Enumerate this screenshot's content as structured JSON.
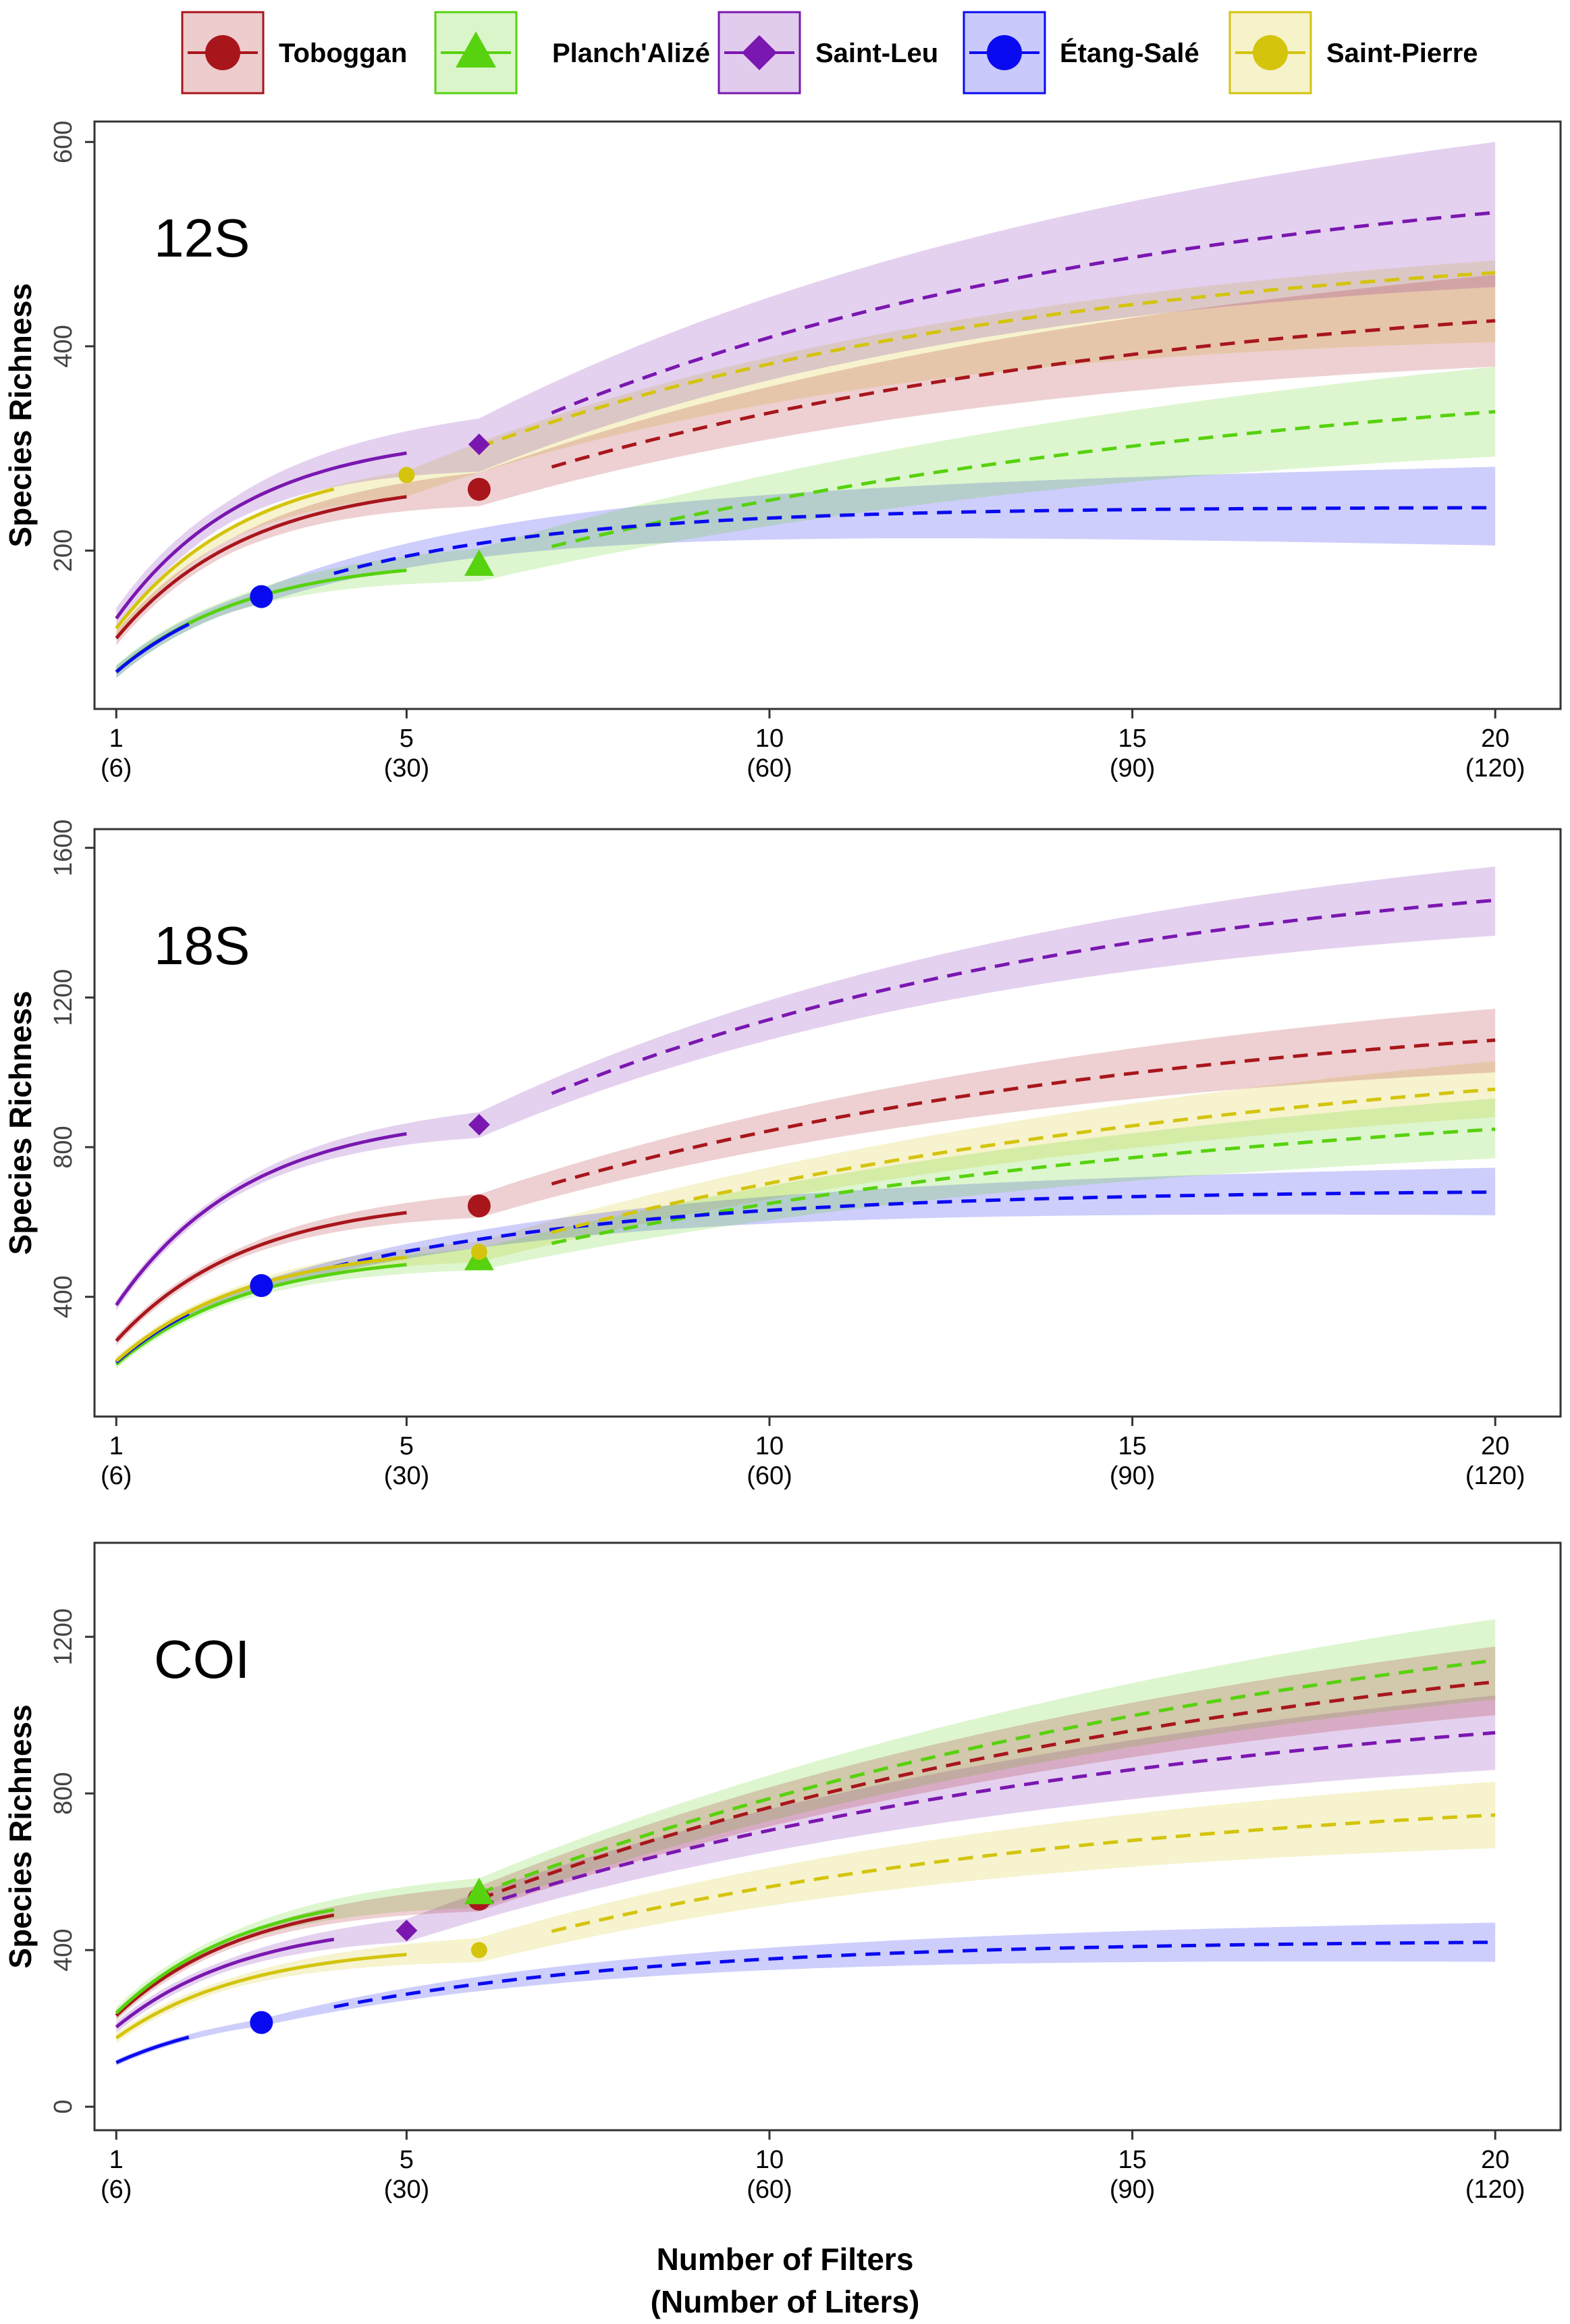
{
  "chart_data": {
    "type": "line",
    "xlabel": [
      "Number of Filters",
      "(Number of Liters)"
    ],
    "ylabel": "Species Richness",
    "x_ticks": [
      {
        "x": 1,
        "label": "1",
        "sub": "(6)"
      },
      {
        "x": 5,
        "label": "5",
        "sub": "(30)"
      },
      {
        "x": 10,
        "label": "10",
        "sub": "(60)"
      },
      {
        "x": 15,
        "label": "15",
        "sub": "(90)"
      },
      {
        "x": 20,
        "label": "20",
        "sub": "(120)"
      }
    ],
    "xlim": [
      0.7,
      20.9
    ],
    "interpolated_linestyle": "solid",
    "extrapolated_linestyle": "dashed",
    "legend": [
      {
        "name": "Toboggan",
        "color": "#a8161c",
        "marker": "circle"
      },
      {
        "name": "Planch'Alizé",
        "color": "#57d20e",
        "marker": "triangle"
      },
      {
        "name": "Saint-Leu",
        "color": "#7a17b0",
        "marker": "diamond"
      },
      {
        "name": "Étang-Salé",
        "color": "#0a0af0",
        "marker": "circle"
      },
      {
        "name": "Saint-Pierre",
        "color": "#d4c40c",
        "marker": "circle"
      }
    ],
    "panels": [
      {
        "label": "12S",
        "ylim": [
          45,
          620
        ],
        "yticks": [
          200,
          400,
          600
        ],
        "series": [
          {
            "name": "Toboggan",
            "observed": {
              "x": 6,
              "y": 260
            },
            "interp_end": 5,
            "extrap_start": 7,
            "asymptote": 462,
            "k": 0.11,
            "end": 425,
            "ci_end": [
              380,
              470
            ]
          },
          {
            "name": "Planch'Alizé",
            "observed": {
              "x": 6,
              "y": 186
            },
            "interp_end": 5,
            "extrap_start": 7,
            "asymptote": 400,
            "k": 0.09,
            "end": 336,
            "ci_end": [
              292,
              380
            ]
          },
          {
            "name": "Saint-Leu",
            "observed": {
              "x": 6,
              "y": 304
            },
            "interp_end": 5,
            "extrap_start": 7,
            "asymptote": 585,
            "k": 0.115,
            "end": 531,
            "ci_end": [
              458,
              600
            ]
          },
          {
            "name": "Étang-Salé",
            "observed": {
              "x": 3,
              "y": 155
            },
            "interp_end": 2,
            "extrap_start": 4,
            "asymptote": 242,
            "k": 0.3,
            "end": 242,
            "ci_end": [
              205,
              282
            ]
          },
          {
            "name": "Saint-Pierre",
            "observed": {
              "x": 5,
              "y": 274
            },
            "interp_end": 4,
            "extrap_start": 6,
            "asymptote": 505,
            "k": 0.125,
            "end": 472,
            "ci_end": [
              404,
              484
            ]
          }
        ]
      },
      {
        "label": "18S",
        "ylim": [
          80,
          1650
        ],
        "yticks": [
          400,
          800,
          1200,
          1600
        ],
        "series": [
          {
            "name": "Toboggan",
            "observed": {
              "x": 6,
              "y": 643
            },
            "interp_end": 5,
            "extrap_start": 7,
            "asymptote": 1175,
            "k": 0.11,
            "end": 1086,
            "ci_end": [
              1000,
              1170
            ]
          },
          {
            "name": "Planch'Alizé",
            "observed": {
              "x": 6,
              "y": 500
            },
            "interp_end": 5,
            "extrap_start": 7,
            "asymptote": 960,
            "k": 0.095,
            "end": 848,
            "ci_end": [
              770,
              930
            ]
          },
          {
            "name": "Saint-Leu",
            "observed": {
              "x": 6,
              "y": 860
            },
            "interp_end": 5,
            "extrap_start": 7,
            "asymptote": 1560,
            "k": 0.12,
            "end": 1460,
            "ci_end": [
              1365,
              1550
            ]
          },
          {
            "name": "Étang-Salé",
            "observed": {
              "x": 3,
              "y": 430
            },
            "interp_end": 2,
            "extrap_start": 4,
            "asymptote": 680,
            "k": 0.22,
            "end": 680,
            "ci_end": [
              618,
              745
            ]
          },
          {
            "name": "Saint-Pierre",
            "observed": {
              "x": 6,
              "y": 520
            },
            "interp_end": 5,
            "extrap_start": 7,
            "asymptote": 1090,
            "k": 0.09,
            "end": 955,
            "ci_end": [
              880,
              1030
            ]
          }
        ]
      },
      {
        "label": "COI",
        "ylim": [
          -60,
          1440
        ],
        "yticks": [
          0,
          400,
          800,
          1200
        ],
        "series": [
          {
            "name": "Toboggan",
            "observed": {
              "x": 6,
              "y": 530
            },
            "interp_end": 4,
            "extrap_start": 6,
            "asymptote": 1330,
            "k": 0.09,
            "end": 1085,
            "ci_end": [
              1000,
              1175
            ]
          },
          {
            "name": "Planch'Alizé",
            "observed": {
              "x": 6,
              "y": 545
            },
            "interp_end": 4,
            "extrap_start": 6,
            "asymptote": 1480,
            "k": 0.08,
            "end": 1140,
            "ci_end": [
              1040,
              1245
            ]
          },
          {
            "name": "Saint-Leu",
            "observed": {
              "x": 5,
              "y": 450
            },
            "interp_end": 4,
            "extrap_start": 6,
            "asymptote": 1110,
            "k": 0.1,
            "end": 955,
            "ci_end": [
              860,
              1050
            ]
          },
          {
            "name": "Étang-Salé",
            "observed": {
              "x": 3,
              "y": 215
            },
            "interp_end": 2,
            "extrap_start": 4,
            "asymptote": 422,
            "k": 0.21,
            "end": 420,
            "ci_end": [
              370,
              470
            ]
          },
          {
            "name": "Saint-Pierre",
            "observed": {
              "x": 6,
              "y": 400
            },
            "interp_end": 5,
            "extrap_start": 7,
            "asymptote": 800,
            "k": 0.12,
            "end": 745,
            "ci_end": [
              660,
              830
            ]
          }
        ]
      }
    ]
  }
}
